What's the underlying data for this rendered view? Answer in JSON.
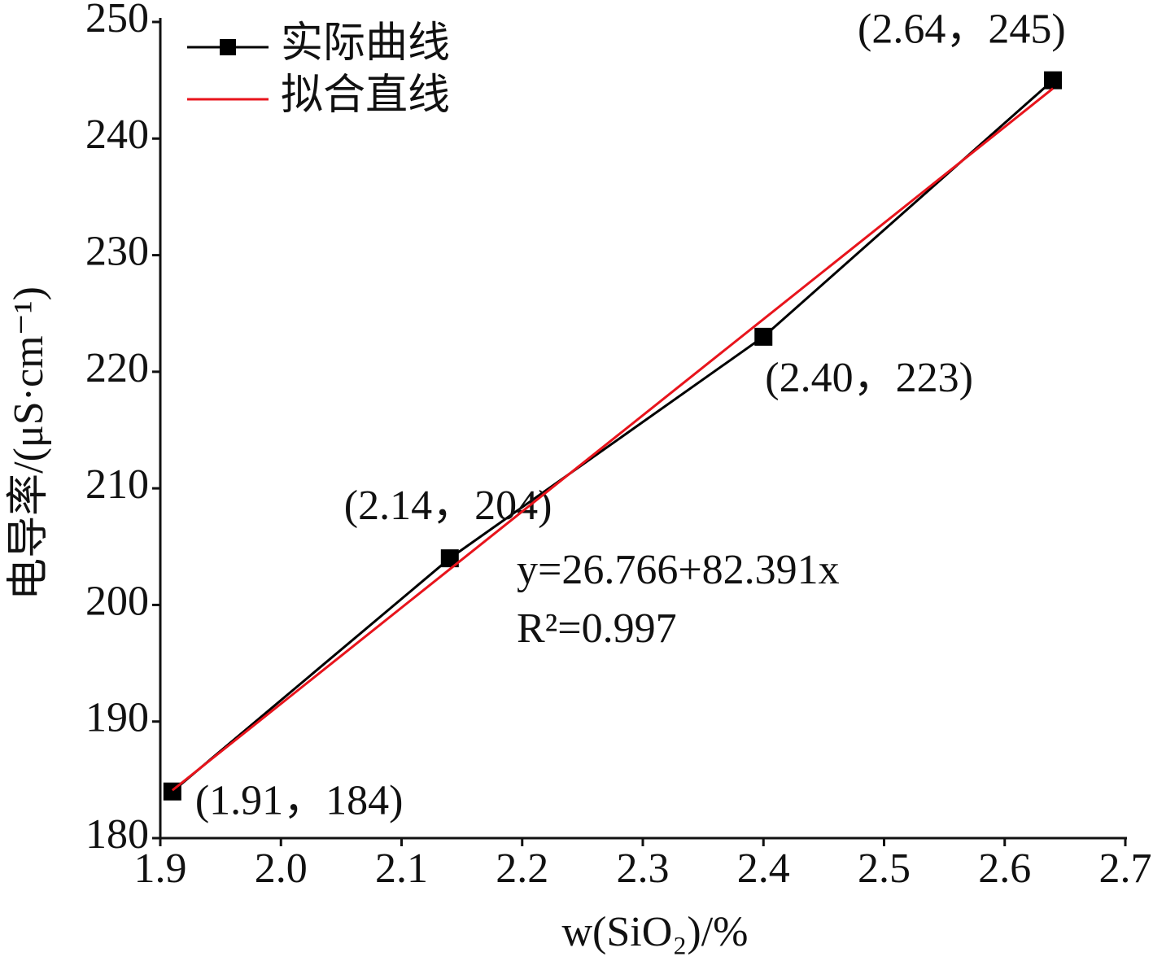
{
  "chart_data": {
    "type": "line",
    "x_label": "w(SiO₂)/%",
    "y_label": "电导率/(μS·cm⁻¹)",
    "xlim": [
      1.9,
      2.7
    ],
    "xticks": [
      1.9,
      {
        "value": 2.0,
        "label": "2.0"
      },
      2.1,
      2.2,
      2.3,
      2.4,
      2.5,
      2.6,
      2.7
    ],
    "ylim": [
      180,
      250
    ],
    "yticks": [
      180,
      190,
      200,
      210,
      220,
      230,
      240,
      250
    ],
    "grid": false,
    "legend": "upper left",
    "series": [
      {
        "name": "实际曲线",
        "color": "#000000",
        "marker": "square",
        "x": [
          1.91,
          2.14,
          2.4,
          2.64
        ],
        "values": [
          184,
          204,
          223,
          245
        ],
        "value_labels": [
          "(1.91，184)",
          "(2.14，204)",
          "(2.40，223)",
          "(2.64，245)"
        ]
      },
      {
        "name": "拟合直线",
        "color": "#e8141c",
        "x": [
          1.91,
          2.64
        ],
        "values": [
          184.1,
          244.3
        ]
      }
    ],
    "annotations": [
      "y=26.766+82.391x",
      "R²=0.997"
    ]
  }
}
